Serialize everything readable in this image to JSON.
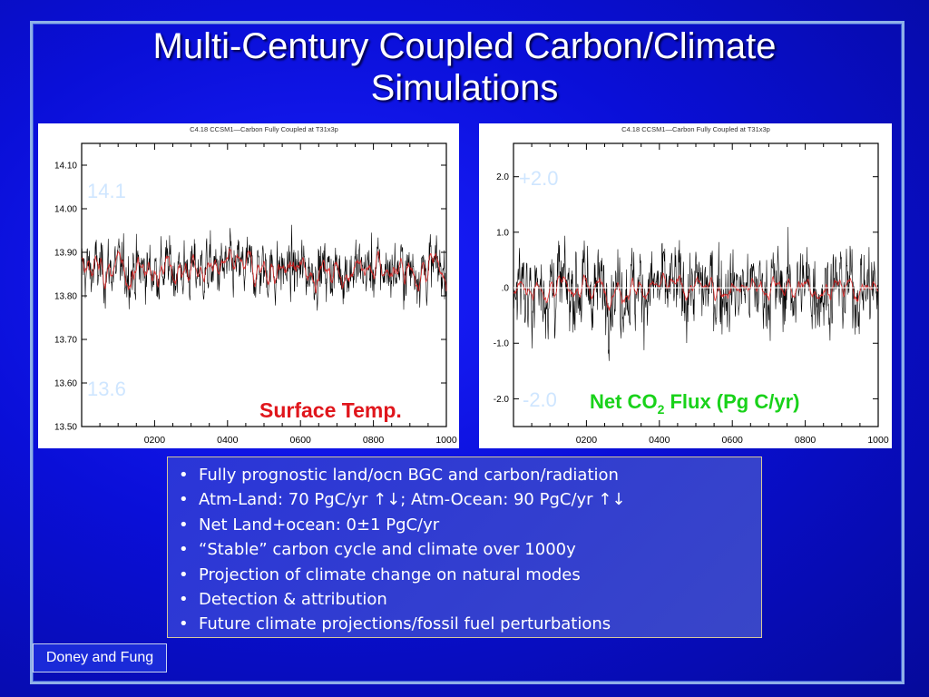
{
  "slide": {
    "title_line1": "Multi-Century Coupled Carbon/Climate",
    "title_line2": "Simulations",
    "credit": "Doney and Fung"
  },
  "bullets": [
    "Fully prognostic land/ocn BGC and carbon/radiation",
    "Atm-Land: 70 PgC/yr ↑↓; Atm-Ocean: 90 PgC/yr ↑↓",
    "Net Land+ocean:     0±1 PgC/yr",
    "“Stable” carbon cycle and climate over 1000y",
    "Projection of climate change on natural modes",
    "Detection & attribution",
    "Future climate projections/fossil fuel perturbations"
  ],
  "chart_data": [
    {
      "type": "line",
      "title": "C4.18 CCSM1—Carbon Fully Coupled at T31x3p",
      "annotation": "Surface Temp.",
      "annotation_color": "#e0161c",
      "range_label_top": "14.1",
      "range_label_bottom": "13.6",
      "range_label_color": "#cfe6ff",
      "xlim": [
        0,
        1000
      ],
      "ylim": [
        13.5,
        14.15
      ],
      "x_ticks": [
        200,
        400,
        600,
        800,
        1000
      ],
      "x_tick_labels": [
        "0200",
        "0400",
        "0600",
        "0800",
        "1000"
      ],
      "y_ticks": [
        13.5,
        13.6,
        13.7,
        13.8,
        13.9,
        14.0,
        14.1
      ],
      "y_tick_labels": [
        "13.50",
        "13.60",
        "13.70",
        "13.80",
        "13.90",
        "14.00",
        "14.10"
      ],
      "series": [
        {
          "color": "#000000",
          "mean": 13.86,
          "amplitude": 0.09,
          "noise": "annual"
        },
        {
          "color": "#e02020",
          "mean": 13.86,
          "amplitude": 0.045,
          "noise": "smoothed"
        }
      ]
    },
    {
      "type": "line",
      "title": "C4.18 CCSM1—Carbon Fully Coupled at T31x3p",
      "annotation": "Net CO2 Flux (Pg C/yr)",
      "annotation_main": "Net CO",
      "annotation_sub": "2",
      "annotation_tail": " Flux (Pg C/yr)",
      "annotation_color": "#19d21a",
      "range_label_top": "+2.0",
      "range_label_bottom": "-2.0",
      "range_label_color": "#cfe6ff",
      "xlim": [
        0,
        1000
      ],
      "ylim": [
        -2.5,
        2.6
      ],
      "x_ticks": [
        200,
        400,
        600,
        800,
        1000
      ],
      "x_tick_labels": [
        "0200",
        "0400",
        "0600",
        "0800",
        "1000"
      ],
      "y_ticks": [
        -2.0,
        -1.0,
        0.0,
        1.0,
        2.0
      ],
      "y_tick_labels": [
        "-2.0",
        "-1.0",
        ".0",
        "1.0",
        "2.0"
      ],
      "zero_line": 0.0,
      "series": [
        {
          "color": "#000000",
          "mean": 0.0,
          "amplitude": 1.0,
          "noise": "annual"
        },
        {
          "color": "#e02020",
          "mean": 0.0,
          "amplitude": 0.25,
          "noise": "smoothed"
        }
      ]
    }
  ]
}
